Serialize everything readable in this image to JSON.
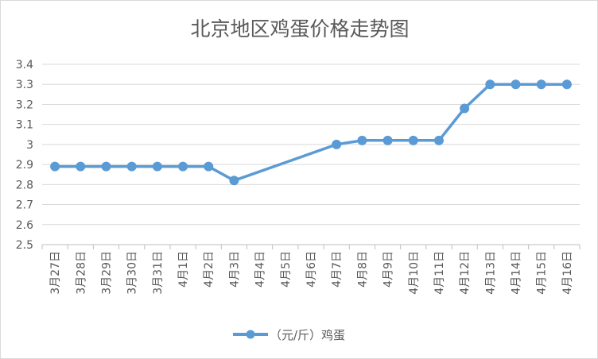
{
  "chart_data": {
    "type": "line",
    "title": "北京地区鸡蛋价格走势图",
    "categories": [
      "3月27日",
      "3月28日",
      "3月29日",
      "3月30日",
      "3月31日",
      "4月1日",
      "4月2日",
      "4月3日",
      "4月4日",
      "4月5日",
      "4月6日",
      "4月7日",
      "4月8日",
      "4月9日",
      "4月10日",
      "4月11日",
      "4月12日",
      "4月13日",
      "4月14日",
      "4月15日",
      "4月16日"
    ],
    "series": [
      {
        "name": "（元/斤）鸡蛋",
        "color": "#5b9bd5",
        "values": [
          2.89,
          2.89,
          2.89,
          2.89,
          2.89,
          2.89,
          2.89,
          2.82,
          null,
          null,
          null,
          3.0,
          3.02,
          3.02,
          3.02,
          3.02,
          3.18,
          3.3,
          3.3,
          3.3,
          3.3
        ]
      }
    ],
    "ylim": [
      2.5,
      3.4
    ],
    "yticks": [
      "2.5",
      "2.6",
      "2.7",
      "2.8",
      "2.9",
      "3",
      "3.1",
      "3.2",
      "3.3",
      "3.4"
    ],
    "grid": true,
    "gridColor": "#d9d9d9",
    "legend": "bottom-center"
  }
}
